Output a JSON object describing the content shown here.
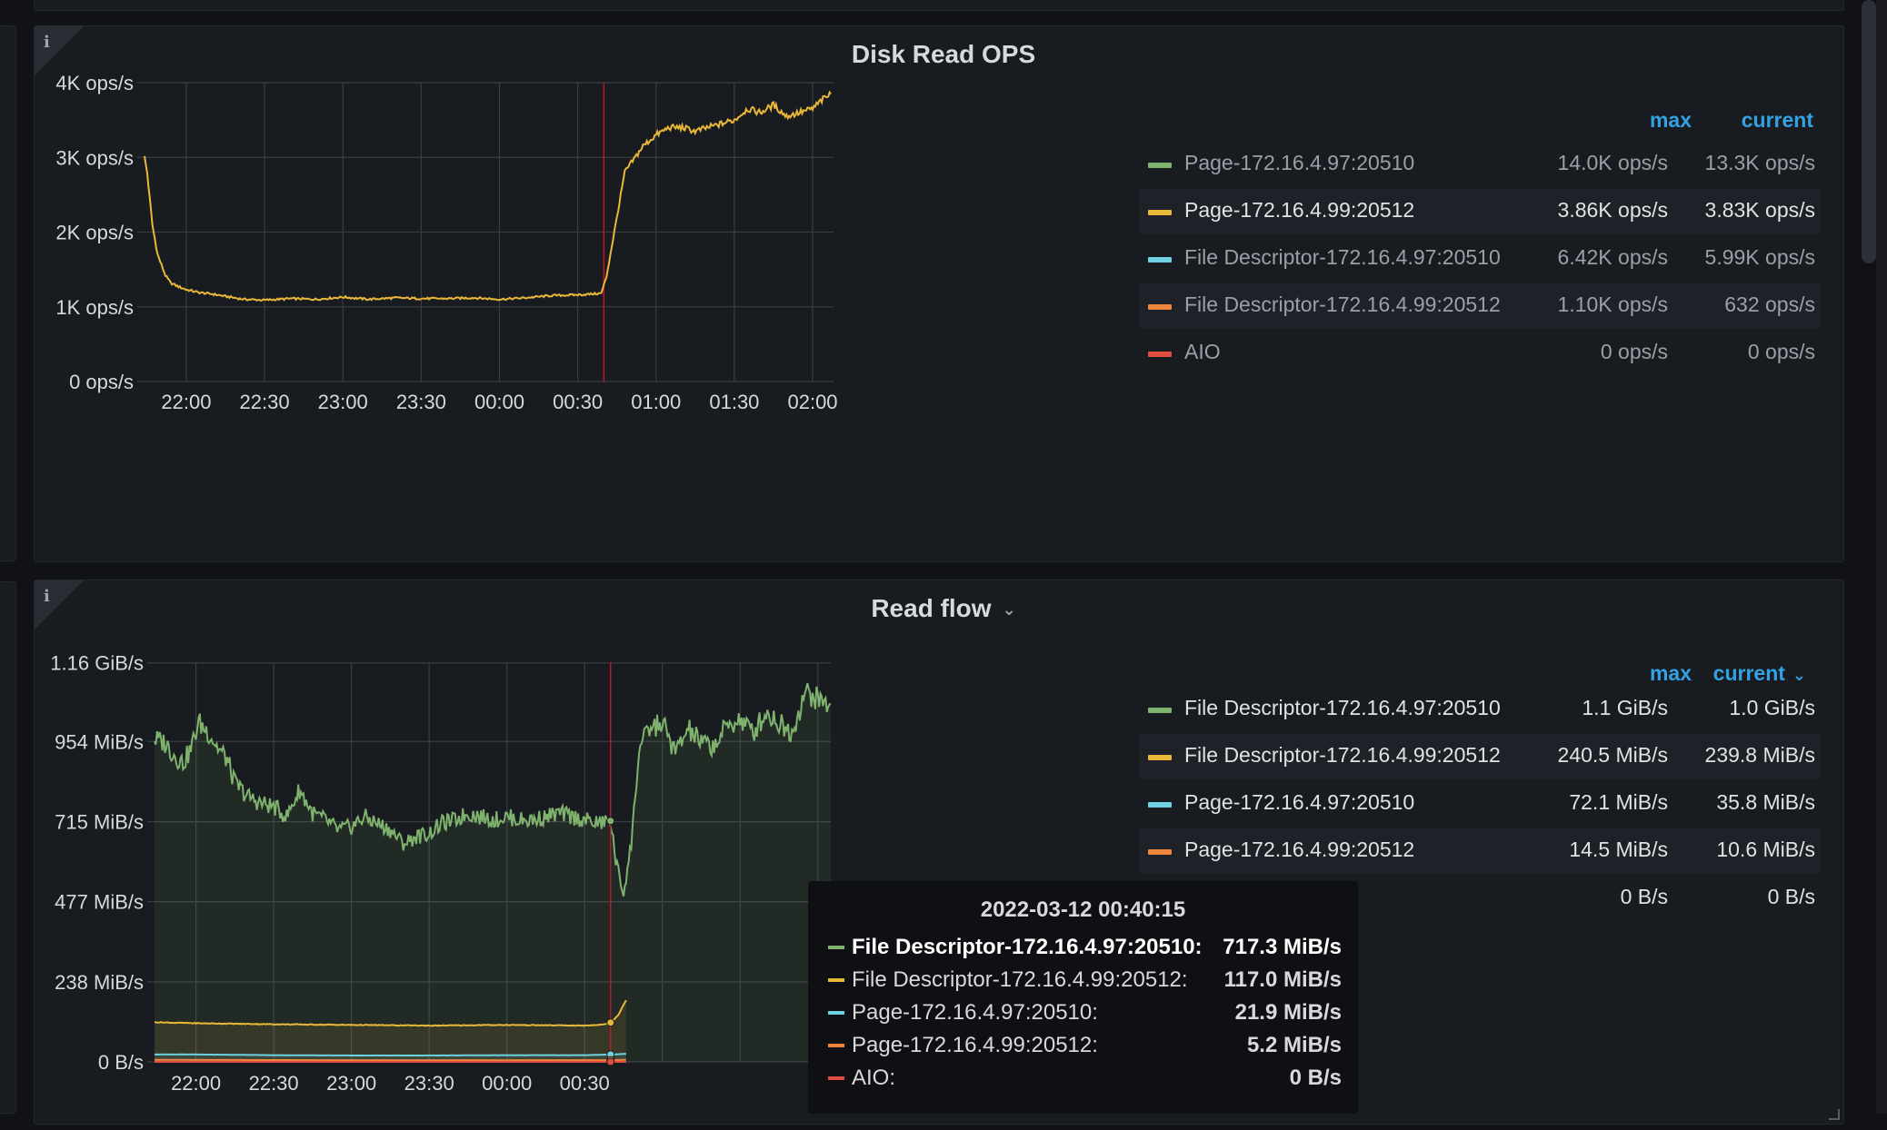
{
  "colors": {
    "green": "#7eb26d",
    "yellow": "#eab839",
    "cyan": "#6ed0e0",
    "orange": "#ef843c",
    "red": "#e24d42",
    "annotation": "#c4162a",
    "header_blue": "#33a2e5"
  },
  "icons": {
    "panel_info": "info-icon",
    "dropdown": "chevron-down-icon"
  },
  "panel1": {
    "info": "i",
    "title": "Disk Read OPS",
    "legend": {
      "max_header": "max",
      "current_header": "current",
      "rows": [
        {
          "name": "Page-172.16.4.97:20510",
          "max": "14.0K ops/s",
          "current": "13.3K ops/s",
          "color": "#7eb26d",
          "dim": true
        },
        {
          "name": "Page-172.16.4.99:20512",
          "max": "3.86K ops/s",
          "current": "3.83K ops/s",
          "color": "#eab839",
          "dim": false
        },
        {
          "name": "File Descriptor-172.16.4.97:20510",
          "max": "6.42K ops/s",
          "current": "5.99K ops/s",
          "color": "#6ed0e0",
          "dim": true
        },
        {
          "name": "File Descriptor-172.16.4.99:20512",
          "max": "1.10K ops/s",
          "current": "632 ops/s",
          "color": "#ef843c",
          "dim": true
        },
        {
          "name": "AIO",
          "max": "0 ops/s",
          "current": "0 ops/s",
          "color": "#e24d42",
          "dim": true
        }
      ]
    }
  },
  "panel2": {
    "info": "i",
    "title": "Read flow",
    "chevron": "⌄",
    "legend": {
      "max_header": "max",
      "current_header": "current",
      "current_chevron": "⌄",
      "rows": [
        {
          "name": "File Descriptor-172.16.4.97:20510",
          "max": "1.1 GiB/s",
          "current": "1.0 GiB/s",
          "color": "#7eb26d"
        },
        {
          "name": "File Descriptor-172.16.4.99:20512",
          "max": "240.5 MiB/s",
          "current": "239.8 MiB/s",
          "color": "#eab839"
        },
        {
          "name": "Page-172.16.4.97:20510",
          "max": "72.1 MiB/s",
          "current": "35.8 MiB/s",
          "color": "#6ed0e0"
        },
        {
          "name": "Page-172.16.4.99:20512",
          "max": "14.5 MiB/s",
          "current": "10.6 MiB/s",
          "color": "#ef843c"
        },
        {
          "name": "AIO",
          "max": "0 B/s",
          "current": "0 B/s",
          "color": "#e24d42"
        }
      ]
    },
    "tooltip": {
      "time": "2022-03-12 00:40:15",
      "rows": [
        {
          "name": "File Descriptor-172.16.4.97:20510:",
          "value": "717.3 MiB/s",
          "color": "#7eb26d",
          "highlight": true
        },
        {
          "name": "File Descriptor-172.16.4.99:20512:",
          "value": "117.0 MiB/s",
          "color": "#eab839",
          "highlight": false
        },
        {
          "name": "Page-172.16.4.97:20510:",
          "value": "21.9 MiB/s",
          "color": "#6ed0e0",
          "highlight": false
        },
        {
          "name": "Page-172.16.4.99:20512:",
          "value": "5.2 MiB/s",
          "color": "#ef843c",
          "highlight": false
        },
        {
          "name": "AIO:",
          "value": "0 B/s",
          "color": "#e24d42",
          "highlight": false
        }
      ]
    }
  },
  "chart_data": [
    {
      "type": "line",
      "title": "Disk Read OPS",
      "ylim": [
        0,
        4000
      ],
      "y_ticks": [
        "0 ops/s",
        "1K ops/s",
        "2K ops/s",
        "3K ops/s",
        "4K ops/s"
      ],
      "y_tick_values": [
        0,
        1000,
        2000,
        3000,
        4000
      ],
      "x_ticks": [
        "22:00",
        "22:30",
        "23:00",
        "23:30",
        "00:00",
        "00:30",
        "01:00",
        "01:30",
        "02:00"
      ],
      "x_tick_minutes": [
        0,
        30,
        60,
        90,
        120,
        150,
        180,
        210,
        240
      ],
      "xlim_minutes": [
        -16,
        248
      ],
      "annotation_minutes": 160,
      "grid": true,
      "series": [
        {
          "name": "Page-172.16.4.99:20512",
          "color": "#eab839",
          "x_minutes": [
            -16,
            -15,
            -13,
            -11,
            -8,
            -6,
            -3,
            0,
            5,
            10,
            15,
            22,
            30,
            40,
            50,
            60,
            70,
            80,
            90,
            100,
            110,
            120,
            130,
            140,
            150,
            155,
            159,
            161,
            164,
            168,
            172,
            175,
            180,
            185,
            190,
            195,
            200,
            205,
            210,
            215,
            220,
            225,
            230,
            235,
            240,
            243,
            247
          ],
          "values": [
            3000,
            2800,
            2100,
            1700,
            1420,
            1320,
            1270,
            1230,
            1190,
            1170,
            1140,
            1100,
            1090,
            1110,
            1100,
            1130,
            1100,
            1120,
            1110,
            1110,
            1120,
            1100,
            1120,
            1150,
            1160,
            1170,
            1180,
            1400,
            2000,
            2800,
            3000,
            3150,
            3300,
            3400,
            3400,
            3350,
            3400,
            3450,
            3500,
            3650,
            3600,
            3700,
            3550,
            3600,
            3650,
            3750,
            3850
          ]
        }
      ]
    },
    {
      "type": "area",
      "title": "Read flow",
      "ylim_mib": [
        0,
        1190
      ],
      "y_ticks": [
        "0 B/s",
        "238 MiB/s",
        "477 MiB/s",
        "715 MiB/s",
        "954 MiB/s",
        "1.16 GiB/s"
      ],
      "y_tick_values_mib": [
        0,
        238,
        477,
        715,
        954,
        1188
      ],
      "x_ticks": [
        "22:00",
        "22:30",
        "23:00",
        "23:30",
        "00:00",
        "00:30"
      ],
      "x_tick_minutes": [
        0,
        30,
        60,
        90,
        120,
        150
      ],
      "x_grid_minutes": [
        0,
        30,
        60,
        90,
        120,
        150,
        180,
        210,
        240
      ],
      "xlim_minutes": [
        -16,
        245
      ],
      "annotation_minutes": 160,
      "grid": true,
      "series": [
        {
          "name": "File Descriptor-172.16.4.97:20510",
          "color": "#7eb26d",
          "x_minutes": [
            -16,
            -12,
            -8,
            -5,
            -2,
            1,
            5,
            8,
            12,
            15,
            20,
            25,
            30,
            35,
            40,
            45,
            50,
            55,
            60,
            65,
            70,
            75,
            80,
            85,
            90,
            95,
            100,
            105,
            110,
            115,
            120,
            125,
            130,
            135,
            140,
            145,
            150,
            155,
            160,
            162,
            165,
            168,
            171,
            175,
            180,
            185,
            190,
            195,
            200,
            205,
            210,
            215,
            220,
            225,
            230,
            235,
            240,
            245
          ],
          "values_mib": [
            960,
            950,
            910,
            890,
            930,
            1010,
            980,
            940,
            900,
            830,
            790,
            770,
            760,
            730,
            810,
            740,
            720,
            690,
            700,
            730,
            710,
            690,
            650,
            670,
            680,
            710,
            720,
            740,
            730,
            720,
            730,
            720,
            720,
            730,
            740,
            730,
            720,
            710,
            717,
            600,
            500,
            650,
            930,
            990,
            1010,
            920,
            990,
            950,
            940,
            1000,
            1020,
            980,
            1040,
            1010,
            980,
            1100,
            1080,
            1060
          ]
        },
        {
          "name": "File Descriptor-172.16.4.99:20512",
          "color": "#eab839",
          "x_minutes": [
            -16,
            0,
            30,
            60,
            90,
            120,
            150,
            158,
            160,
            163,
            166
          ],
          "values_mib": [
            118,
            115,
            112,
            110,
            108,
            110,
            108,
            112,
            117,
            140,
            185
          ]
        },
        {
          "name": "Page-172.16.4.97:20510",
          "color": "#6ed0e0",
          "x_minutes": [
            -16,
            0,
            30,
            60,
            90,
            120,
            150,
            160,
            166
          ],
          "values_mib": [
            22,
            22,
            20,
            19,
            19,
            20,
            20,
            21.9,
            24
          ]
        },
        {
          "name": "Page-172.16.4.99:20512",
          "color": "#ef843c",
          "x_minutes": [
            -16,
            60,
            120,
            160,
            166
          ],
          "values_mib": [
            6,
            5,
            5,
            5.2,
            6
          ]
        },
        {
          "name": "AIO",
          "color": "#e24d42",
          "x_minutes": [
            -16,
            166
          ],
          "values_mib": [
            0,
            0
          ]
        }
      ]
    }
  ]
}
